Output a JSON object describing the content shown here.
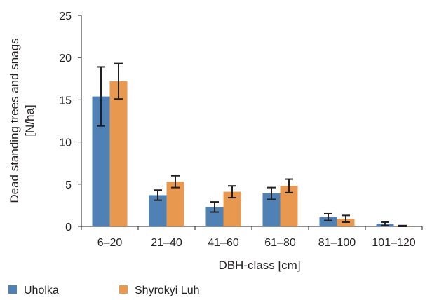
{
  "chart_data": {
    "type": "bar",
    "title": "",
    "xlabel": "DBH-class [cm]",
    "ylabel_line1": "Dead standing trees and snags",
    "ylabel_line2": "[N/ha]",
    "ylim": [
      0,
      25
    ],
    "yticks": [
      0,
      5,
      10,
      15,
      20,
      25
    ],
    "ytick_labels": [
      "0",
      "5",
      "10",
      "15",
      "20",
      "25"
    ],
    "categories": [
      "6–20",
      "21–40",
      "41–60",
      "61–80",
      "81–100",
      "101–120"
    ],
    "grid": false,
    "legend_position": "bottom-left",
    "error_bars": true,
    "series": [
      {
        "name": "Uholka",
        "color": "#4f81b5",
        "values": [
          15.4,
          3.7,
          2.3,
          3.9,
          1.1,
          0.3
        ],
        "err": [
          3.5,
          0.6,
          0.6,
          0.7,
          0.4,
          0.2
        ]
      },
      {
        "name": "Shyrokyi Luh",
        "color": "#e8994f",
        "values": [
          17.2,
          5.3,
          4.1,
          4.8,
          0.9,
          0.05
        ],
        "err": [
          2.1,
          0.7,
          0.7,
          0.8,
          0.4,
          0.05
        ]
      }
    ]
  }
}
